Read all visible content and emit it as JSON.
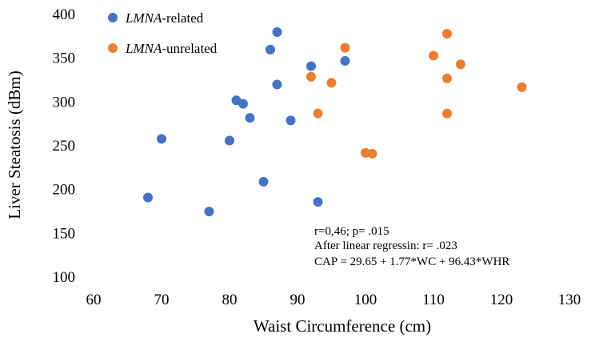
{
  "chart_data": {
    "type": "scatter",
    "xlabel": "Waist Circumference (cm)",
    "ylabel": "Liver Steatosis (dBm)",
    "xlim": [
      60,
      130
    ],
    "ylim": [
      100,
      400
    ],
    "x_ticks": [
      60,
      70,
      80,
      90,
      100,
      110,
      120,
      130
    ],
    "y_ticks": [
      100,
      150,
      200,
      250,
      300,
      350,
      400
    ],
    "grid": false,
    "legend_position": "top-left",
    "series": [
      {
        "name_prefix": "LMNA",
        "name_suffix": "-related",
        "color": "#4472C4",
        "points": [
          {
            "x": 68,
            "y": 190
          },
          {
            "x": 70,
            "y": 257
          },
          {
            "x": 77,
            "y": 174
          },
          {
            "x": 80,
            "y": 255
          },
          {
            "x": 81,
            "y": 301
          },
          {
            "x": 82,
            "y": 297
          },
          {
            "x": 83,
            "y": 281
          },
          {
            "x": 85,
            "y": 208
          },
          {
            "x": 86,
            "y": 359
          },
          {
            "x": 87,
            "y": 379
          },
          {
            "x": 87,
            "y": 319
          },
          {
            "x": 89,
            "y": 278
          },
          {
            "x": 92,
            "y": 340
          },
          {
            "x": 93,
            "y": 185
          },
          {
            "x": 97,
            "y": 346
          }
        ]
      },
      {
        "name_prefix": "LMNA",
        "name_suffix": "-unrelated",
        "color": "#ED7D31",
        "points": [
          {
            "x": 92,
            "y": 328
          },
          {
            "x": 93,
            "y": 286
          },
          {
            "x": 95,
            "y": 321
          },
          {
            "x": 97,
            "y": 361
          },
          {
            "x": 100,
            "y": 241
          },
          {
            "x": 101,
            "y": 240
          },
          {
            "x": 110,
            "y": 352
          },
          {
            "x": 112,
            "y": 377
          },
          {
            "x": 112,
            "y": 326
          },
          {
            "x": 112,
            "y": 286
          },
          {
            "x": 114,
            "y": 342
          },
          {
            "x": 123,
            "y": 316
          }
        ]
      }
    ],
    "annotations": [
      "r=0,46; p= .015",
      "After linear regressin: r= .023",
      "CAP = 29.65 + 1.77*WC + 96.43*WHR"
    ]
  }
}
